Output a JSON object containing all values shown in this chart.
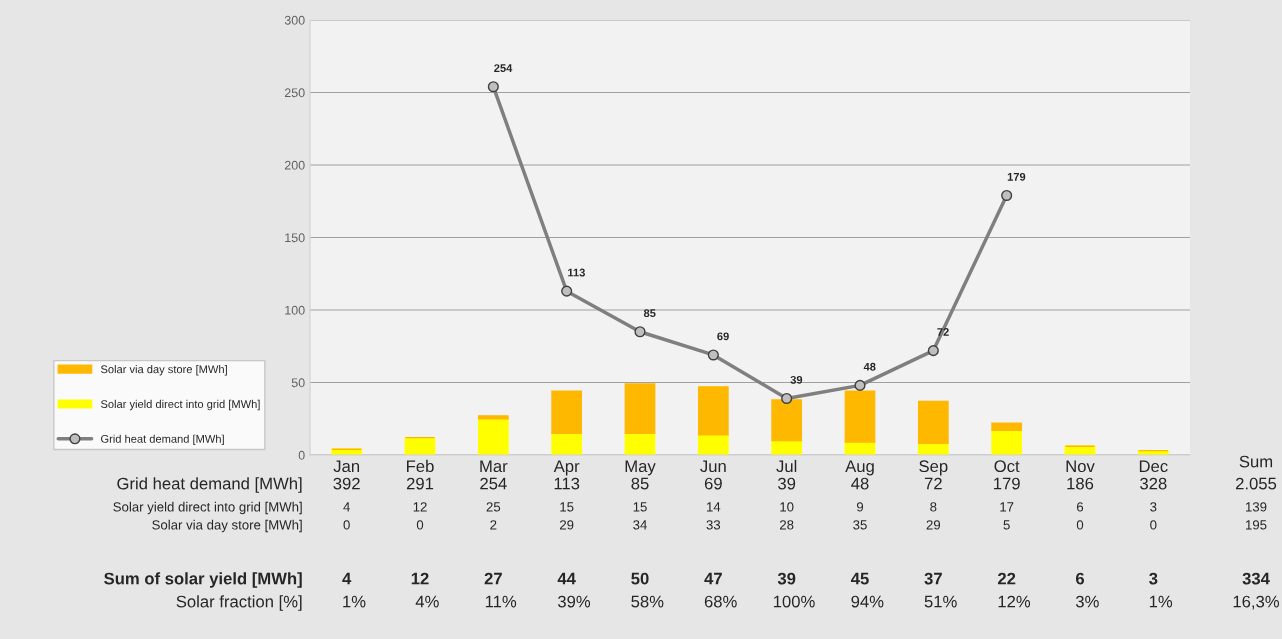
{
  "chart_data": {
    "type": "bar",
    "stacked": true,
    "categories": [
      "Jan",
      "Feb",
      "Mar",
      "Apr",
      "May",
      "Jun",
      "Jul",
      "Aug",
      "Sep",
      "Oct",
      "Nov",
      "Dec"
    ],
    "series": [
      {
        "name": "Grid heat demand [MWh]",
        "type": "line",
        "color": "#7f7f7f",
        "marker": "circle",
        "line_style": "solid",
        "values": [
          null,
          null,
          254,
          113,
          85,
          69,
          39,
          48,
          72,
          179,
          null,
          null
        ],
        "value_labels": [
          "392",
          "291",
          "254",
          "113",
          "85",
          "69",
          "39",
          "48",
          "72",
          "179",
          "186",
          "328"
        ]
      },
      {
        "name": "Solar yield direct into grid [MWh]",
        "color": "#ffff00",
        "values": [
          4,
          12,
          25,
          15,
          15,
          14,
          10,
          9,
          8,
          17,
          6,
          3
        ]
      },
      {
        "name": "Solar via day store [MWh]",
        "color": "#ffb800",
        "values": [
          0,
          0,
          2,
          29,
          34,
          33,
          28,
          35,
          29,
          5,
          0,
          0
        ]
      }
    ],
    "annotations": [
      "Sum of solar yield [MWh]",
      "4",
      "12",
      "27",
      "44",
      "50",
      "47",
      "39",
      "45",
      "37",
      "22",
      "6",
      "3",
      "Solar fraction [%]",
      "1%",
      "4%",
      "11%",
      "39%",
      "58%",
      "68%",
      "100%",
      "94%",
      "51%",
      "12%",
      "3%",
      "1%",
      "Sum",
      "2.055",
      "139",
      "195",
      "334",
      "16,3%"
    ],
    "ylim": [
      0,
      300
    ],
    "yticks": [
      0,
      50,
      100,
      150,
      200,
      250,
      300
    ],
    "grid": "y",
    "legend": "bottom left",
    "data_labels": true
  }
}
